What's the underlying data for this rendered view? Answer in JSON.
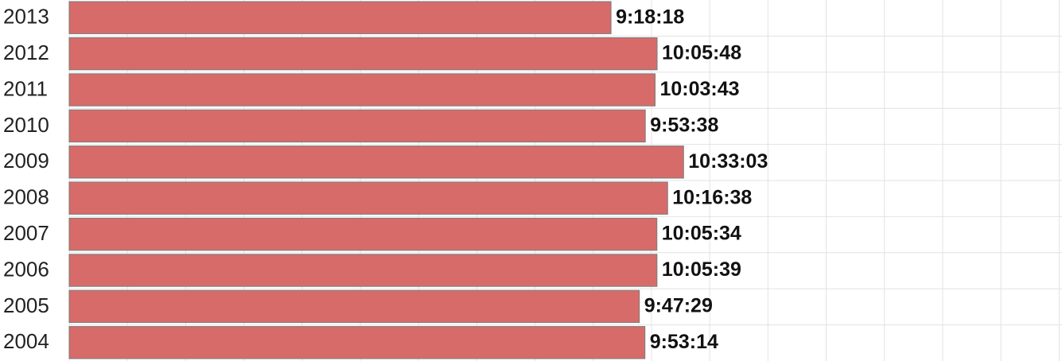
{
  "chart_data": {
    "type": "barh",
    "categories": [
      "2013",
      "2012",
      "2011",
      "2010",
      "2009",
      "2008",
      "2007",
      "2006",
      "2005",
      "2004"
    ],
    "values": [
      33498,
      36348,
      36223,
      35618,
      37983,
      36998,
      36334,
      36339,
      35249,
      35594
    ],
    "value_labels": [
      "9:18:18",
      "10:05:48",
      "10:03:43",
      "9:53:38",
      "10:33:03",
      "10:16:38",
      "10:05:34",
      "10:05:39",
      "9:47:29",
      "9:53:14"
    ],
    "color": "#d76b6a",
    "xlim": [
      0,
      61380
    ],
    "xticks": [
      0,
      3600,
      7200,
      10800,
      14400,
      18000,
      21600,
      25200,
      28800,
      32400,
      36000,
      39600,
      43200,
      46800,
      50400,
      54000,
      57600,
      61200
    ],
    "grid": true
  }
}
